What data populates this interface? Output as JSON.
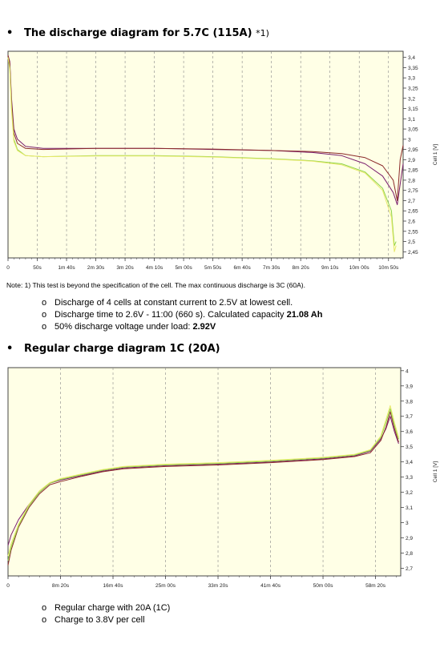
{
  "section1": {
    "heading_main": "The discharge diagram for 5.7C (115A)",
    "heading_note": "*1)"
  },
  "note": "Note:  1) This test is beyond the specification of the cell.  The max continuous discharge is 3C (60A).",
  "list1": [
    {
      "text": "Discharge of 4 cells at constant current to 2.5V at lowest cell.",
      "value": ""
    },
    {
      "text": "Discharge time to 2.6V - 11:00 (660 s). Calculated capacity ",
      "value": "21.08 Ah"
    },
    {
      "text": "50% discharge voltage under load: ",
      "value": "2.92V"
    }
  ],
  "section2": {
    "heading_main": "Regular charge diagram  1C (20A)"
  },
  "list2": [
    {
      "text": "Regular charge with 20A (1C)"
    },
    {
      "text": "Charge to 3.8V per cell"
    }
  ],
  "colors": {
    "plot_bg": "#ffffe6",
    "series": [
      "#7a1e6e",
      "#8b2a2a",
      "#8fd44a",
      "#e8e86a"
    ]
  },
  "chart_data": [
    {
      "type": "line",
      "ylabel": "Cell 1 [V]",
      "ylim": [
        2.42,
        3.43
      ],
      "xlim": [
        0,
        675
      ],
      "x_ticks": [
        0,
        50,
        100,
        150,
        200,
        250,
        300,
        350,
        400,
        450,
        500,
        550,
        600,
        650
      ],
      "x_tick_labels": [
        "0",
        "50s",
        "1m 40s",
        "2m 30s",
        "3m 20s",
        "4m 10s",
        "5m 00s",
        "5m 50s",
        "6m 40s",
        "7m 30s",
        "8m 20s",
        "9m 10s",
        "10m 00s",
        "10m 50s"
      ],
      "y_ticks": [
        2.45,
        2.5,
        2.55,
        2.6,
        2.65,
        2.7,
        2.75,
        2.8,
        2.85,
        2.9,
        2.95,
        3.0,
        3.05,
        3.1,
        3.15,
        3.2,
        3.25,
        3.3,
        3.35,
        3.4
      ],
      "y_tick_labels": [
        "2,45",
        "2,5",
        "2,55",
        "2,6",
        "2,65",
        "2,7",
        "2,75",
        "2,8",
        "2,85",
        "2,9",
        "2,95",
        "3",
        "3,05",
        "3,1",
        "3,15",
        "3,2",
        "3,25",
        "3,3",
        "3,35",
        "3,4"
      ],
      "grid": true,
      "series": [
        {
          "color": "#7a1e6e",
          "points": [
            [
              0,
              3.41
            ],
            [
              3,
              3.38
            ],
            [
              6,
              3.2
            ],
            [
              10,
              3.05
            ],
            [
              16,
              3.0
            ],
            [
              30,
              2.965
            ],
            [
              60,
              2.955
            ],
            [
              150,
              2.955
            ],
            [
              250,
              2.955
            ],
            [
              350,
              2.95
            ],
            [
              450,
              2.945
            ],
            [
              520,
              2.935
            ],
            [
              570,
              2.92
            ],
            [
              610,
              2.88
            ],
            [
              640,
              2.82
            ],
            [
              658,
              2.74
            ],
            [
              665,
              2.68
            ],
            [
              670,
              2.78
            ],
            [
              675,
              2.88
            ]
          ]
        },
        {
          "color": "#8b2a2a",
          "points": [
            [
              0,
              3.41
            ],
            [
              3,
              3.37
            ],
            [
              6,
              3.18
            ],
            [
              10,
              3.03
            ],
            [
              16,
              2.98
            ],
            [
              30,
              2.955
            ],
            [
              60,
              2.95
            ],
            [
              150,
              2.955
            ],
            [
              250,
              2.955
            ],
            [
              350,
              2.952
            ],
            [
              450,
              2.945
            ],
            [
              520,
              2.94
            ],
            [
              570,
              2.93
            ],
            [
              610,
              2.91
            ],
            [
              640,
              2.87
            ],
            [
              658,
              2.8
            ],
            [
              665,
              2.7
            ],
            [
              670,
              2.9
            ],
            [
              675,
              2.97
            ]
          ]
        },
        {
          "color": "#8fd44a",
          "points": [
            [
              0,
              3.4
            ],
            [
              3,
              3.35
            ],
            [
              6,
              3.15
            ],
            [
              10,
              3.0
            ],
            [
              16,
              2.95
            ],
            [
              30,
              2.92
            ],
            [
              60,
              2.915
            ],
            [
              150,
              2.92
            ],
            [
              250,
              2.92
            ],
            [
              350,
              2.915
            ],
            [
              450,
              2.905
            ],
            [
              520,
              2.895
            ],
            [
              570,
              2.88
            ],
            [
              610,
              2.84
            ],
            [
              640,
              2.76
            ],
            [
              655,
              2.65
            ],
            [
              660,
              2.48
            ],
            [
              663,
              2.5
            ]
          ]
        },
        {
          "color": "#e8e86a",
          "points": [
            [
              0,
              3.4
            ],
            [
              3,
              3.34
            ],
            [
              6,
              3.14
            ],
            [
              10,
              2.99
            ],
            [
              16,
              2.945
            ],
            [
              30,
              2.92
            ],
            [
              60,
              2.915
            ],
            [
              150,
              2.918
            ],
            [
              250,
              2.918
            ],
            [
              350,
              2.913
            ],
            [
              450,
              2.903
            ],
            [
              520,
              2.893
            ],
            [
              570,
              2.875
            ],
            [
              610,
              2.835
            ],
            [
              640,
              2.75
            ],
            [
              655,
              2.62
            ],
            [
              660,
              2.45
            ],
            [
              663,
              2.48
            ]
          ]
        }
      ]
    },
    {
      "type": "line",
      "ylabel": "Cell 1 [V]",
      "ylim": [
        2.65,
        4.02
      ],
      "xlim": [
        0,
        3740
      ],
      "x_ticks": [
        0,
        500,
        1000,
        1500,
        2000,
        2500,
        3000,
        3500
      ],
      "x_tick_labels": [
        "0",
        "8m 20s",
        "16m 40s",
        "25m 00s",
        "33m 20s",
        "41m 40s",
        "50m 00s",
        "58m 20s"
      ],
      "y_ticks": [
        2.7,
        2.8,
        2.9,
        3.0,
        3.1,
        3.2,
        3.3,
        3.4,
        3.5,
        3.6,
        3.7,
        3.8,
        3.9,
        4.0
      ],
      "y_tick_labels": [
        "2,7",
        "2,8",
        "2,9",
        "3",
        "3,1",
        "3,2",
        "3,3",
        "3,4",
        "3,5",
        "3,6",
        "3,7",
        "3,8",
        "3,9",
        "4"
      ],
      "grid": true,
      "series": [
        {
          "color": "#7a1e6e",
          "points": [
            [
              0,
              2.85
            ],
            [
              30,
              2.92
            ],
            [
              100,
              3.02
            ],
            [
              200,
              3.12
            ],
            [
              300,
              3.2
            ],
            [
              400,
              3.26
            ],
            [
              500,
              3.28
            ],
            [
              700,
              3.31
            ],
            [
              900,
              3.34
            ],
            [
              1100,
              3.36
            ],
            [
              1500,
              3.375
            ],
            [
              2000,
              3.385
            ],
            [
              2500,
              3.4
            ],
            [
              3000,
              3.42
            ],
            [
              3300,
              3.44
            ],
            [
              3450,
              3.47
            ],
            [
              3550,
              3.55
            ],
            [
              3600,
              3.62
            ],
            [
              3640,
              3.7
            ],
            [
              3680,
              3.6
            ],
            [
              3720,
              3.52
            ]
          ]
        },
        {
          "color": "#8b2a2a",
          "points": [
            [
              0,
              2.72
            ],
            [
              30,
              2.82
            ],
            [
              100,
              2.97
            ],
            [
              200,
              3.1
            ],
            [
              300,
              3.19
            ],
            [
              400,
              3.25
            ],
            [
              500,
              3.27
            ],
            [
              700,
              3.305
            ],
            [
              900,
              3.335
            ],
            [
              1100,
              3.355
            ],
            [
              1500,
              3.37
            ],
            [
              2000,
              3.38
            ],
            [
              2500,
              3.395
            ],
            [
              3000,
              3.415
            ],
            [
              3300,
              3.435
            ],
            [
              3450,
              3.46
            ],
            [
              3550,
              3.54
            ],
            [
              3600,
              3.63
            ],
            [
              3640,
              3.73
            ],
            [
              3680,
              3.62
            ],
            [
              3720,
              3.53
            ]
          ]
        },
        {
          "color": "#8fd44a",
          "points": [
            [
              0,
              2.75
            ],
            [
              30,
              2.84
            ],
            [
              100,
              2.98
            ],
            [
              200,
              3.11
            ],
            [
              300,
              3.2
            ],
            [
              400,
              3.26
            ],
            [
              500,
              3.285
            ],
            [
              700,
              3.315
            ],
            [
              900,
              3.345
            ],
            [
              1100,
              3.365
            ],
            [
              1500,
              3.38
            ],
            [
              2000,
              3.39
            ],
            [
              2500,
              3.405
            ],
            [
              3000,
              3.425
            ],
            [
              3300,
              3.445
            ],
            [
              3450,
              3.475
            ],
            [
              3550,
              3.56
            ],
            [
              3600,
              3.66
            ],
            [
              3640,
              3.75
            ],
            [
              3680,
              3.64
            ],
            [
              3720,
              3.55
            ]
          ]
        },
        {
          "color": "#e8e86a",
          "points": [
            [
              0,
              2.78
            ],
            [
              30,
              2.86
            ],
            [
              100,
              2.99
            ],
            [
              200,
              3.12
            ],
            [
              300,
              3.21
            ],
            [
              400,
              3.265
            ],
            [
              500,
              3.29
            ],
            [
              700,
              3.32
            ],
            [
              900,
              3.35
            ],
            [
              1100,
              3.37
            ],
            [
              1500,
              3.385
            ],
            [
              2000,
              3.395
            ],
            [
              2500,
              3.41
            ],
            [
              3000,
              3.43
            ],
            [
              3300,
              3.45
            ],
            [
              3450,
              3.48
            ],
            [
              3550,
              3.57
            ],
            [
              3600,
              3.68
            ],
            [
              3640,
              3.77
            ],
            [
              3680,
              3.66
            ],
            [
              3720,
              3.56
            ]
          ]
        }
      ]
    }
  ]
}
